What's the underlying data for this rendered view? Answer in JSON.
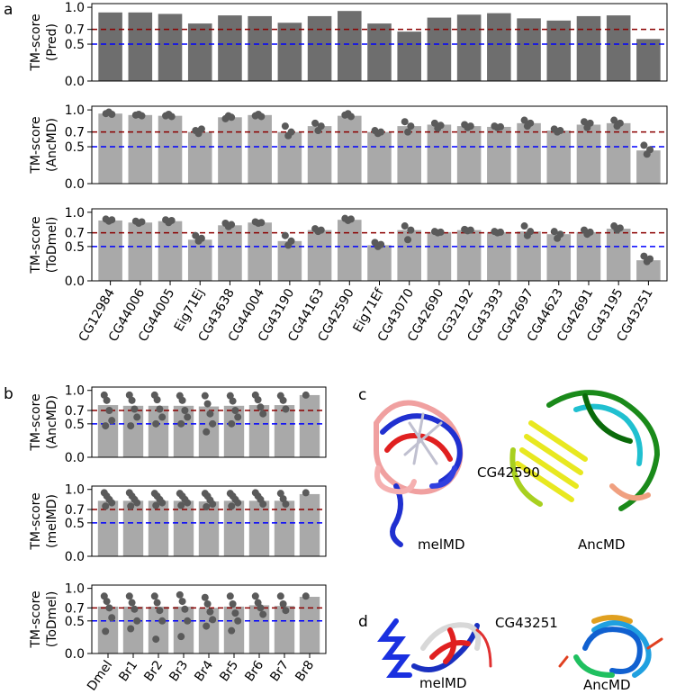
{
  "panel_labels": {
    "a": "a",
    "b": "b",
    "c": "c",
    "d": "d"
  },
  "images": {
    "c": {
      "protein": "CG42590",
      "left": "melMD",
      "right": "AncMD"
    },
    "d": {
      "protein": "CG43251",
      "left": "melMD",
      "right": "AncMD"
    }
  },
  "chart_data": [
    {
      "type": "bar",
      "ylabel": [
        "TM-score",
        "(Pred)"
      ],
      "color": "#6e6e6e",
      "ylim": [
        0,
        1.05
      ],
      "yticks": [
        {
          "value": 0,
          "label": "0.0"
        },
        0.5,
        0.7,
        {
          "value": 1,
          "label": "1.0"
        }
      ],
      "hlines": [
        {
          "value": 0.7,
          "color": "#8b0000"
        },
        {
          "value": 0.5,
          "color": "#0000ff"
        }
      ],
      "values": [
        0.93,
        0.93,
        0.91,
        0.78,
        0.89,
        0.88,
        0.79,
        0.88,
        0.95,
        0.78,
        0.67,
        0.86,
        0.9,
        0.92,
        0.85,
        0.82,
        0.88,
        0.89,
        0.57
      ]
    },
    {
      "type": "bar",
      "ylabel": [
        "TM-score",
        "(AncMD)"
      ],
      "color": "#a9a9a9",
      "ylim": [
        0,
        1.05
      ],
      "yticks": [
        {
          "value": 0,
          "label": "0.0"
        },
        0.5,
        0.7,
        {
          "value": 1,
          "label": "1.0"
        }
      ],
      "hlines": [
        {
          "value": 0.7,
          "color": "#8b0000"
        },
        {
          "value": 0.5,
          "color": "#0000ff"
        }
      ],
      "values": [
        0.95,
        0.93,
        0.92,
        0.7,
        0.9,
        0.93,
        0.7,
        0.78,
        0.92,
        0.7,
        0.78,
        0.8,
        0.78,
        0.77,
        0.82,
        0.72,
        0.8,
        0.82,
        0.45
      ],
      "points": [
        [
          0.95,
          0.97,
          0.94
        ],
        [
          0.93,
          0.94,
          0.92
        ],
        [
          0.92,
          0.94,
          0.91
        ],
        [
          0.72,
          0.68,
          0.74
        ],
        [
          0.88,
          0.92,
          0.9
        ],
        [
          0.92,
          0.94,
          0.91
        ],
        [
          0.78,
          0.65,
          0.7
        ],
        [
          0.82,
          0.72,
          0.78
        ],
        [
          0.93,
          0.95,
          0.91
        ],
        [
          0.72,
          0.68,
          0.7
        ],
        [
          0.84,
          0.7,
          0.78
        ],
        [
          0.82,
          0.75,
          0.79
        ],
        [
          0.8,
          0.76,
          0.78
        ],
        [
          0.78,
          0.76,
          0.77
        ],
        [
          0.86,
          0.78,
          0.82
        ],
        [
          0.74,
          0.7,
          0.72
        ],
        [
          0.84,
          0.76,
          0.82
        ],
        [
          0.86,
          0.78,
          0.82
        ],
        [
          0.52,
          0.4,
          0.46
        ]
      ]
    },
    {
      "type": "bar",
      "ylabel": [
        "TM-score",
        "(ToDmel)"
      ],
      "color": "#a9a9a9",
      "ylim": [
        0,
        1.05
      ],
      "yticks": [
        {
          "value": 0,
          "label": "0.0"
        },
        0.5,
        0.7,
        {
          "value": 1,
          "label": "1.0"
        }
      ],
      "hlines": [
        {
          "value": 0.7,
          "color": "#8b0000"
        },
        {
          "value": 0.5,
          "color": "#0000ff"
        }
      ],
      "categories": [
        "CG12984",
        "CG44006",
        "CG44005",
        "Eig71Ej",
        "CG43638",
        "CG44004",
        "CG43190",
        "CG44163",
        "CG42590",
        "Eig71Ef",
        "CG43070",
        "CG42690",
        "CG32192",
        "CG43393",
        "CG42697",
        "CG44623",
        "CG42691",
        "CG43195",
        "CG43251"
      ],
      "values": [
        0.88,
        0.85,
        0.87,
        0.6,
        0.81,
        0.85,
        0.58,
        0.74,
        0.89,
        0.52,
        0.74,
        0.71,
        0.74,
        0.71,
        0.72,
        0.68,
        0.71,
        0.76,
        0.3
      ],
      "points": [
        [
          0.9,
          0.87,
          0.89
        ],
        [
          0.87,
          0.84,
          0.86
        ],
        [
          0.89,
          0.85,
          0.88
        ],
        [
          0.66,
          0.58,
          0.62
        ],
        [
          0.84,
          0.79,
          0.82
        ],
        [
          0.86,
          0.84,
          0.85
        ],
        [
          0.66,
          0.52,
          0.58
        ],
        [
          0.76,
          0.72,
          0.74
        ],
        [
          0.91,
          0.88,
          0.9
        ],
        [
          0.56,
          0.5,
          0.53
        ],
        [
          0.8,
          0.6,
          0.74
        ],
        [
          0.72,
          0.7,
          0.71
        ],
        [
          0.75,
          0.73,
          0.74
        ],
        [
          0.72,
          0.7,
          0.71
        ],
        [
          0.8,
          0.66,
          0.72
        ],
        [
          0.72,
          0.62,
          0.68
        ],
        [
          0.74,
          0.68,
          0.71
        ],
        [
          0.8,
          0.74,
          0.77
        ],
        [
          0.36,
          0.28,
          0.32
        ]
      ]
    },
    {
      "type": "bar",
      "ylabel": [
        "TM-score",
        "(AncMD)"
      ],
      "color": "#a9a9a9",
      "ylim": [
        0,
        1.05
      ],
      "yticks": [
        {
          "value": 0,
          "label": "0.0"
        },
        0.5,
        0.7,
        {
          "value": 1,
          "label": "1.0"
        }
      ],
      "hlines": [
        {
          "value": 0.7,
          "color": "#8b0000"
        },
        {
          "value": 0.5,
          "color": "#0000ff"
        }
      ],
      "values": [
        0.78,
        0.77,
        0.77,
        0.77,
        0.76,
        0.77,
        0.78,
        0.78,
        0.93
      ],
      "points": [
        [
          0.93,
          0.85,
          0.7,
          0.55,
          0.47
        ],
        [
          0.93,
          0.85,
          0.72,
          0.6,
          0.47
        ],
        [
          0.93,
          0.86,
          0.72,
          0.6,
          0.5
        ],
        [
          0.92,
          0.85,
          0.7,
          0.6,
          0.5
        ],
        [
          0.92,
          0.8,
          0.65,
          0.5,
          0.38
        ],
        [
          0.92,
          0.84,
          0.7,
          0.6,
          0.5
        ],
        [
          0.93,
          0.86,
          0.75,
          0.65
        ],
        [
          0.92,
          0.85,
          0.72
        ],
        [
          0.93
        ]
      ]
    },
    {
      "type": "bar",
      "ylabel": [
        "TM-score",
        "(melMD)"
      ],
      "color": "#a9a9a9",
      "ylim": [
        0,
        1.05
      ],
      "yticks": [
        {
          "value": 0,
          "label": "0.0"
        },
        0.5,
        0.7,
        {
          "value": 1,
          "label": "1.0"
        }
      ],
      "hlines": [
        {
          "value": 0.7,
          "color": "#8b0000"
        },
        {
          "value": 0.5,
          "color": "#0000ff"
        }
      ],
      "values": [
        0.83,
        0.83,
        0.83,
        0.83,
        0.82,
        0.83,
        0.83,
        0.83,
        0.93
      ],
      "points": [
        [
          0.95,
          0.9,
          0.85,
          0.8,
          0.75
        ],
        [
          0.95,
          0.9,
          0.85,
          0.8,
          0.75
        ],
        [
          0.94,
          0.9,
          0.85,
          0.8,
          0.76
        ],
        [
          0.94,
          0.9,
          0.85,
          0.8,
          0.76
        ],
        [
          0.94,
          0.9,
          0.84,
          0.78,
          0.74
        ],
        [
          0.94,
          0.9,
          0.85,
          0.8,
          0.75
        ],
        [
          0.95,
          0.9,
          0.85,
          0.78
        ],
        [
          0.94,
          0.86,
          0.78
        ],
        [
          0.95
        ]
      ]
    },
    {
      "type": "bar",
      "ylabel": [
        "TM-score",
        "(ToDmel)"
      ],
      "color": "#a9a9a9",
      "ylim": [
        0,
        1.05
      ],
      "yticks": [
        {
          "value": 0,
          "label": "0.0"
        },
        0.5,
        0.7,
        {
          "value": 1,
          "label": "1.0"
        }
      ],
      "hlines": [
        {
          "value": 0.7,
          "color": "#8b0000"
        },
        {
          "value": 0.5,
          "color": "#0000ff"
        }
      ],
      "categories": [
        "Dmel",
        "Br1",
        "Br2",
        "Br3",
        "Br4",
        "Br5",
        "Br6",
        "Br7",
        "Br8"
      ],
      "values": [
        0.72,
        0.72,
        0.72,
        0.72,
        0.7,
        0.72,
        0.74,
        0.73,
        0.87
      ],
      "points": [
        [
          0.88,
          0.8,
          0.7,
          0.55,
          0.34
        ],
        [
          0.88,
          0.78,
          0.68,
          0.5,
          0.38
        ],
        [
          0.88,
          0.78,
          0.66,
          0.5,
          0.22
        ],
        [
          0.9,
          0.8,
          0.68,
          0.5,
          0.26
        ],
        [
          0.86,
          0.76,
          0.64,
          0.52,
          0.42
        ],
        [
          0.88,
          0.76,
          0.62,
          0.5,
          0.35
        ],
        [
          0.88,
          0.78,
          0.7,
          0.6
        ],
        [
          0.88,
          0.76,
          0.66
        ],
        [
          0.88
        ]
      ]
    }
  ]
}
